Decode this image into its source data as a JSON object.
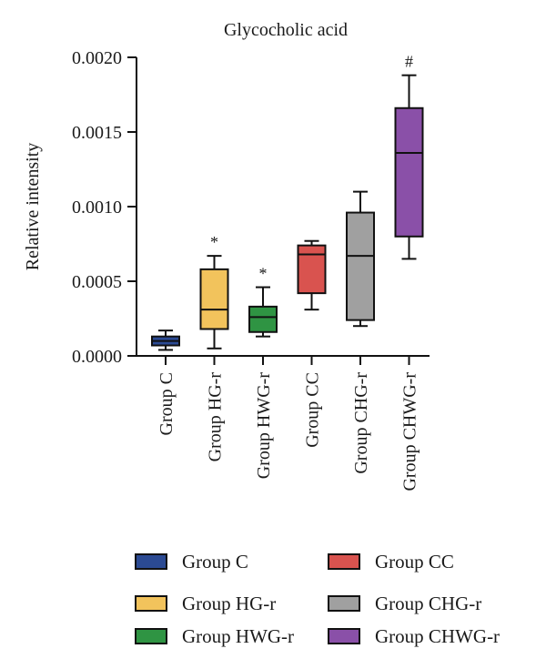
{
  "chart_data": {
    "type": "box",
    "title": "Glycocholic acid",
    "ylabel": "Relative intensity",
    "xlabel": "",
    "ylim": [
      0,
      0.002
    ],
    "yticks": [
      "0.0000",
      "0.0005",
      "0.0010",
      "0.0015",
      "0.0020"
    ],
    "ytick_values": [
      0,
      0.0005,
      0.001,
      0.0015,
      0.002
    ],
    "grid": false,
    "legend_position": "bottom",
    "categories": [
      "Group C",
      "Group HG-r",
      "Group HWG-r",
      "Group CC",
      "Group CHG-r",
      "Group CHWG-r"
    ],
    "boxes": [
      {
        "name": "Group C",
        "color": "#2b4a93",
        "min": 4e-05,
        "q1": 7e-05,
        "median": 0.0001,
        "q3": 0.00013,
        "max": 0.00017,
        "annotation": ""
      },
      {
        "name": "Group HG-r",
        "color": "#f2c35c",
        "min": 5e-05,
        "q1": 0.00018,
        "median": 0.00031,
        "q3": 0.00058,
        "max": 0.00067,
        "annotation": "*"
      },
      {
        "name": "Group HWG-r",
        "color": "#2f9443",
        "min": 0.00013,
        "q1": 0.00016,
        "median": 0.00026,
        "q3": 0.00033,
        "max": 0.00046,
        "annotation": "*"
      },
      {
        "name": "Group CC",
        "color": "#d9534f",
        "min": 0.00031,
        "q1": 0.00042,
        "median": 0.00068,
        "q3": 0.00074,
        "max": 0.00077,
        "annotation": ""
      },
      {
        "name": "Group CHG-r",
        "color": "#a0a0a0",
        "min": 0.0002,
        "q1": 0.00024,
        "median": 0.00067,
        "q3": 0.00096,
        "max": 0.0011,
        "annotation": ""
      },
      {
        "name": "Group CHWG-r",
        "color": "#8a50a8",
        "min": 0.00065,
        "q1": 0.0008,
        "median": 0.00136,
        "q3": 0.00166,
        "max": 0.00188,
        "annotation": "#"
      }
    ]
  }
}
